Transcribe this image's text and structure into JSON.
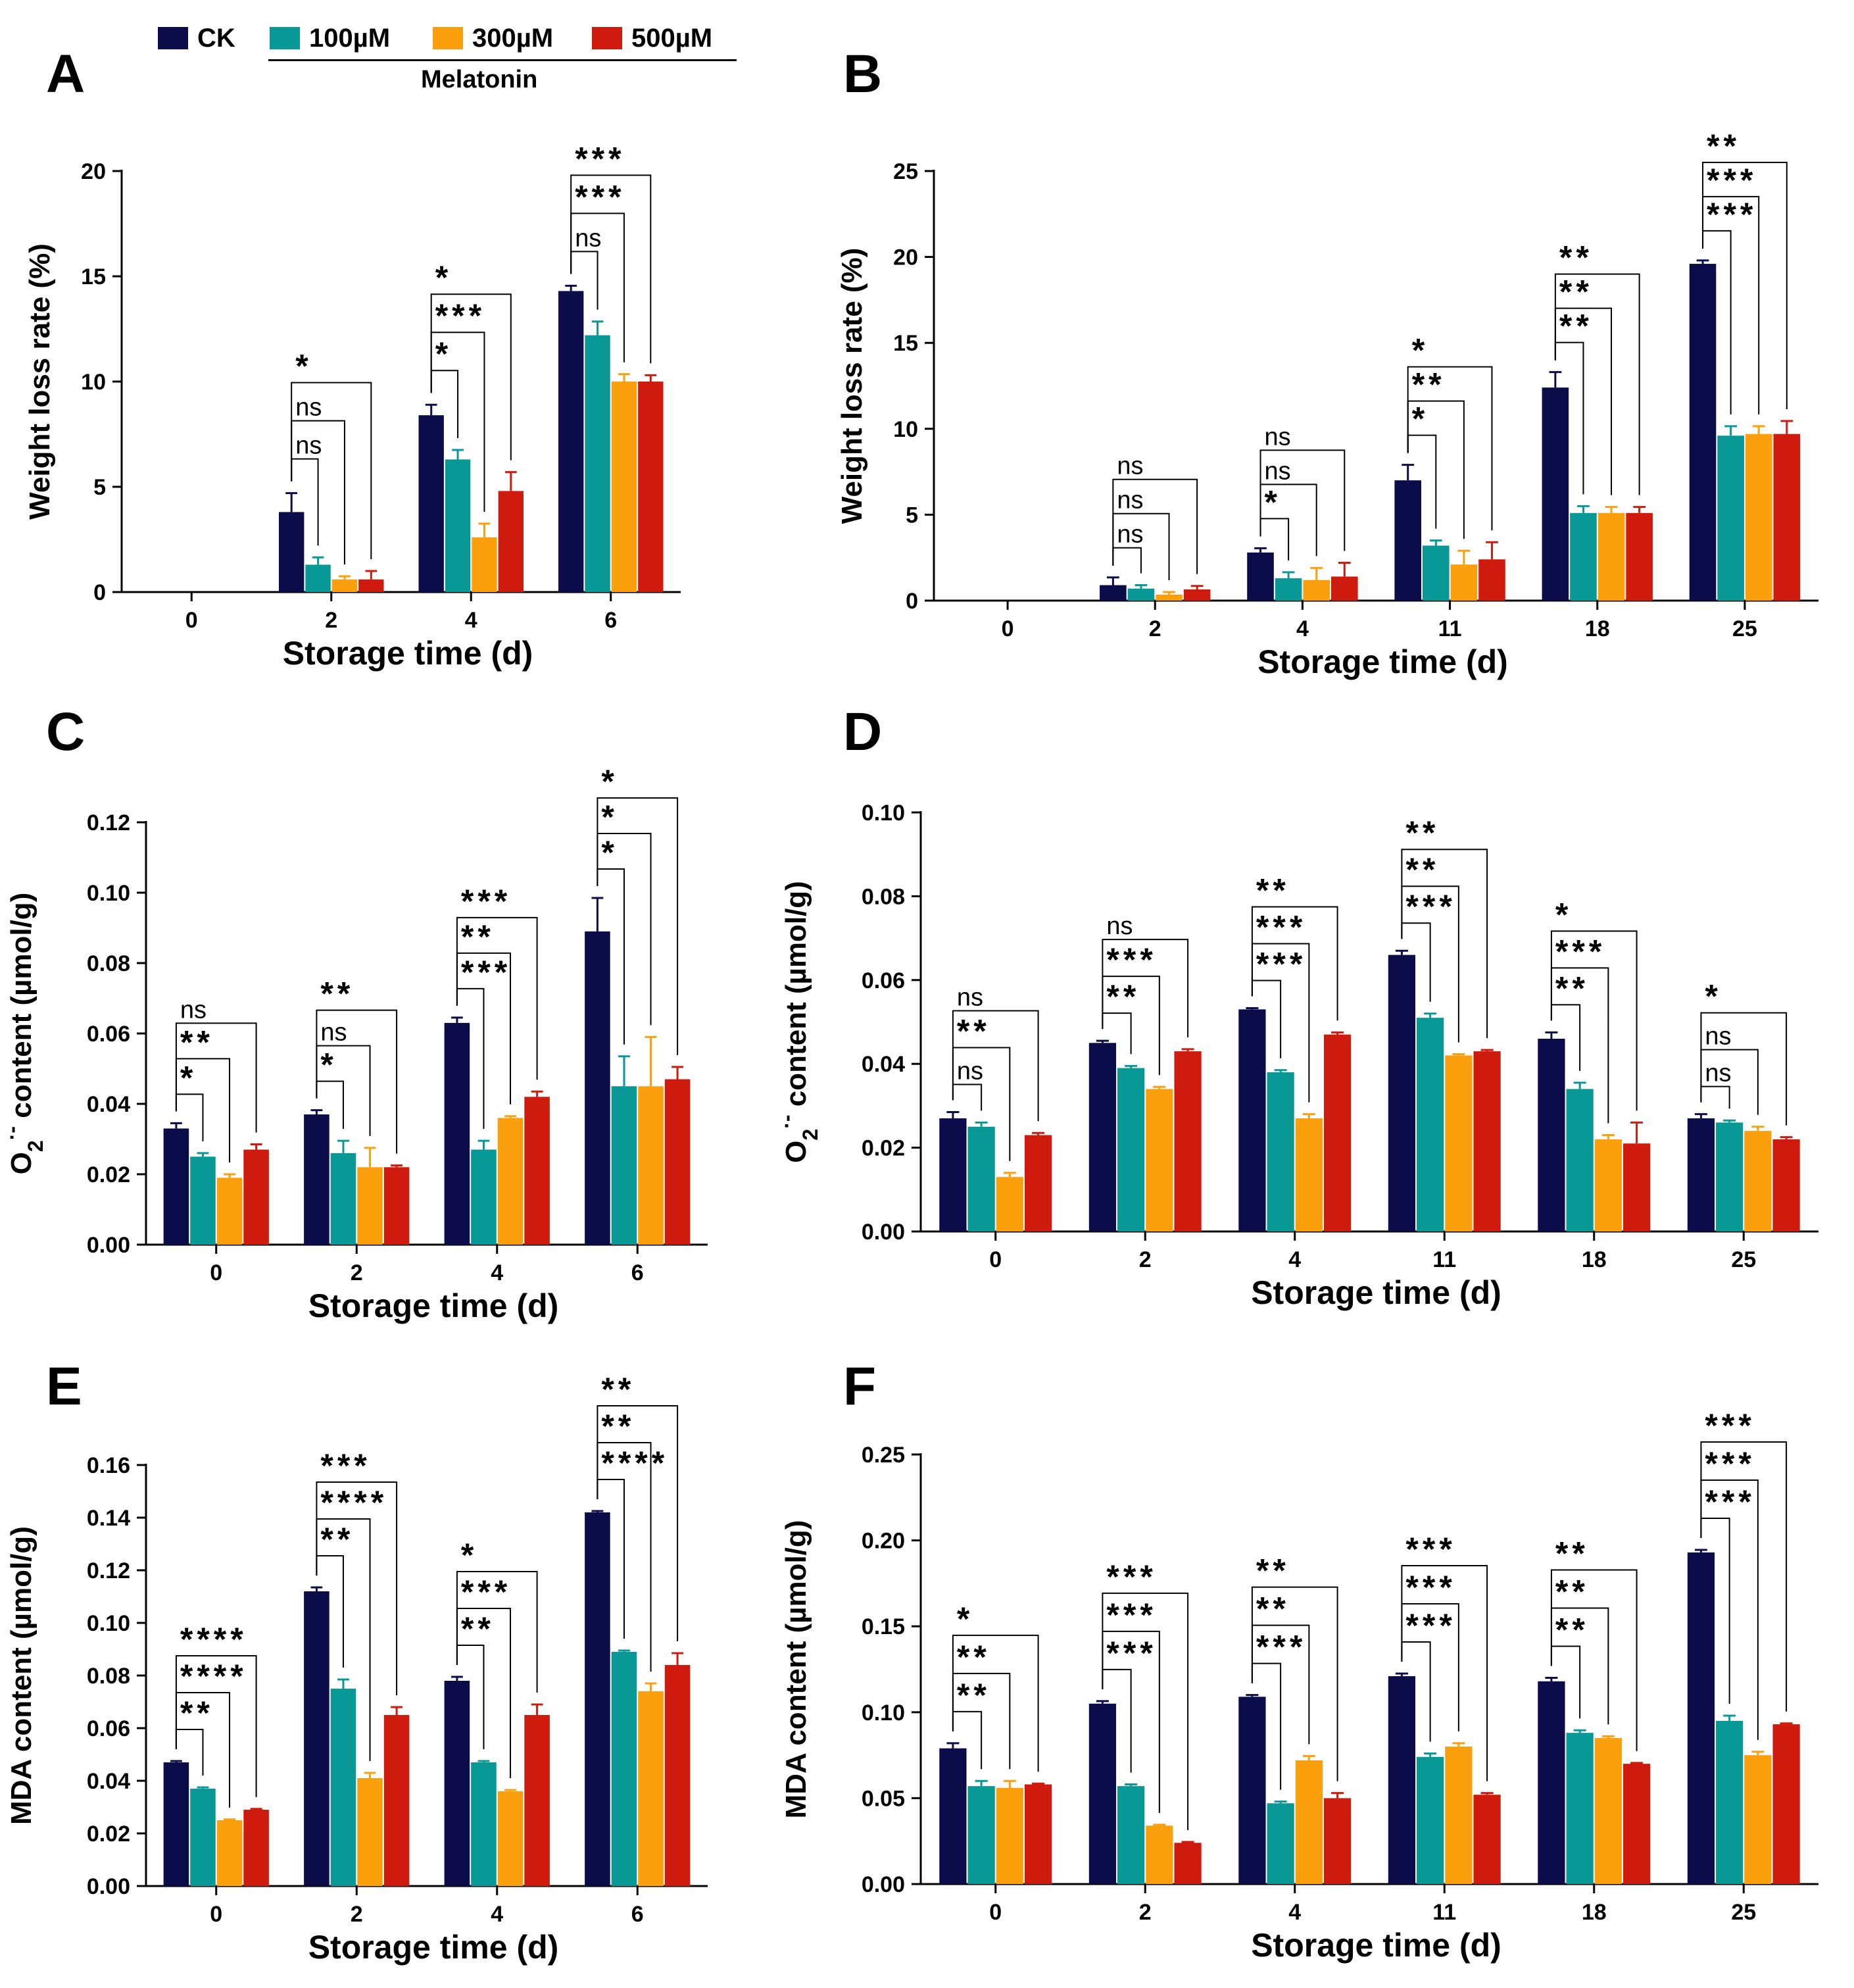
{
  "colors": {
    "CK": "#0c0c4a",
    "100uM": "#089896",
    "300uM": "#fb9f0d",
    "500uM": "#cf1b0d"
  },
  "legend": {
    "items": [
      {
        "key": "CK",
        "label": "CK"
      },
      {
        "key": "100uM",
        "label": "100µM"
      },
      {
        "key": "300uM",
        "label": "300µM"
      },
      {
        "key": "500uM",
        "label": "500µM"
      }
    ],
    "group_label": "Melatonin"
  },
  "chart_data": [
    {
      "panel": "A",
      "type": "bar",
      "xlabel": "Storage time (d)",
      "ylabel": "Weight loss rate (%)",
      "ylim": [
        0,
        20
      ],
      "yticks": [
        "0",
        "5",
        "10",
        "15",
        "20"
      ],
      "categories": [
        "0",
        "2",
        "4",
        "6"
      ],
      "series": [
        {
          "name": "CK",
          "values": [
            0,
            3.8,
            8.4,
            14.3
          ],
          "errors": [
            0,
            0.9,
            0.5,
            0.25
          ]
        },
        {
          "name": "100µM",
          "values": [
            0,
            1.3,
            6.3,
            12.2
          ],
          "errors": [
            0,
            0.35,
            0.45,
            0.65
          ]
        },
        {
          "name": "300µM",
          "values": [
            0,
            0.6,
            2.6,
            10.0
          ],
          "errors": [
            0,
            0.15,
            0.65,
            0.35
          ]
        },
        {
          "name": "500µM",
          "values": [
            0,
            0.6,
            4.8,
            10.0
          ],
          "errors": [
            0,
            0.4,
            0.9,
            0.3
          ]
        }
      ],
      "brackets": [
        {
          "cat": 1,
          "to": 1,
          "label": "ns"
        },
        {
          "cat": 1,
          "to": 2,
          "label": "ns"
        },
        {
          "cat": 1,
          "to": 3,
          "label": "*"
        },
        {
          "cat": 2,
          "to": 1,
          "label": "*"
        },
        {
          "cat": 2,
          "to": 2,
          "label": "***"
        },
        {
          "cat": 2,
          "to": 3,
          "label": "*"
        },
        {
          "cat": 3,
          "to": 1,
          "label": "ns"
        },
        {
          "cat": 3,
          "to": 2,
          "label": "***"
        },
        {
          "cat": 3,
          "to": 3,
          "label": "***"
        }
      ]
    },
    {
      "panel": "B",
      "type": "bar",
      "xlabel": "Storage time (d)",
      "ylabel": "Weight loss rate (%)",
      "ylim": [
        0,
        25
      ],
      "yticks": [
        "0",
        "5",
        "10",
        "15",
        "20",
        "25"
      ],
      "categories": [
        "0",
        "2",
        "4",
        "11",
        "18",
        "25"
      ],
      "series": [
        {
          "name": "CK",
          "values": [
            0,
            0.9,
            2.8,
            7.0,
            12.4,
            19.6
          ],
          "errors": [
            0,
            0.45,
            0.25,
            0.9,
            0.9,
            0.2
          ]
        },
        {
          "name": "100µM",
          "values": [
            0,
            0.7,
            1.3,
            3.2,
            5.1,
            9.6
          ],
          "errors": [
            0,
            0.2,
            0.35,
            0.3,
            0.4,
            0.55
          ]
        },
        {
          "name": "300µM",
          "values": [
            0,
            0.35,
            1.2,
            2.1,
            5.1,
            9.7
          ],
          "errors": [
            0,
            0.15,
            0.7,
            0.8,
            0.35,
            0.45
          ]
        },
        {
          "name": "500µM",
          "values": [
            0,
            0.65,
            1.4,
            2.4,
            5.1,
            9.7
          ],
          "errors": [
            0,
            0.2,
            0.8,
            1.0,
            0.35,
            0.75
          ]
        }
      ],
      "brackets": [
        {
          "cat": 1,
          "to": 1,
          "label": "ns"
        },
        {
          "cat": 1,
          "to": 2,
          "label": "ns"
        },
        {
          "cat": 1,
          "to": 3,
          "label": "ns"
        },
        {
          "cat": 2,
          "to": 1,
          "label": "*"
        },
        {
          "cat": 2,
          "to": 2,
          "label": "ns"
        },
        {
          "cat": 2,
          "to": 3,
          "label": "ns"
        },
        {
          "cat": 3,
          "to": 1,
          "label": "*"
        },
        {
          "cat": 3,
          "to": 2,
          "label": "**"
        },
        {
          "cat": 3,
          "to": 3,
          "label": "*"
        },
        {
          "cat": 4,
          "to": 1,
          "label": "**"
        },
        {
          "cat": 4,
          "to": 2,
          "label": "**"
        },
        {
          "cat": 4,
          "to": 3,
          "label": "**"
        },
        {
          "cat": 5,
          "to": 1,
          "label": "***"
        },
        {
          "cat": 5,
          "to": 2,
          "label": "***"
        },
        {
          "cat": 5,
          "to": 3,
          "label": "**"
        }
      ]
    },
    {
      "panel": "C",
      "type": "bar",
      "xlabel": "Storage time (d)",
      "ylabel": "O2·- content (µmol/g)",
      "ylabel_parts": {
        "base": "O",
        "sub": "2",
        "sup": "·-",
        "rest": " content (µmol/g)"
      },
      "ylim": [
        0,
        0.12
      ],
      "yticks": [
        "0.00",
        "0.02",
        "0.04",
        "0.06",
        "0.08",
        "0.10",
        "0.12"
      ],
      "categories": [
        "0",
        "2",
        "4",
        "6"
      ],
      "series": [
        {
          "name": "CK",
          "values": [
            0.033,
            0.037,
            0.063,
            0.089
          ],
          "errors": [
            0.0015,
            0.0012,
            0.0015,
            0.0095
          ]
        },
        {
          "name": "100µM",
          "values": [
            0.025,
            0.026,
            0.027,
            0.045
          ],
          "errors": [
            0.001,
            0.0035,
            0.0025,
            0.0085
          ]
        },
        {
          "name": "300µM",
          "values": [
            0.019,
            0.022,
            0.036,
            0.045
          ],
          "errors": [
            0.001,
            0.0055,
            0.0005,
            0.014
          ]
        },
        {
          "name": "500µM",
          "values": [
            0.027,
            0.022,
            0.042,
            0.047
          ],
          "errors": [
            0.0015,
            0.0005,
            0.0015,
            0.0035
          ]
        }
      ],
      "brackets": [
        {
          "cat": 0,
          "to": 1,
          "label": "*"
        },
        {
          "cat": 0,
          "to": 2,
          "label": "**"
        },
        {
          "cat": 0,
          "to": 3,
          "label": "ns"
        },
        {
          "cat": 1,
          "to": 1,
          "label": "*"
        },
        {
          "cat": 1,
          "to": 2,
          "label": "ns"
        },
        {
          "cat": 1,
          "to": 3,
          "label": "**"
        },
        {
          "cat": 2,
          "to": 1,
          "label": "***"
        },
        {
          "cat": 2,
          "to": 2,
          "label": "**"
        },
        {
          "cat": 2,
          "to": 3,
          "label": "***"
        },
        {
          "cat": 3,
          "to": 1,
          "label": "*"
        },
        {
          "cat": 3,
          "to": 2,
          "label": "*"
        },
        {
          "cat": 3,
          "to": 3,
          "label": "*"
        }
      ]
    },
    {
      "panel": "D",
      "type": "bar",
      "xlabel": "Storage time (d)",
      "ylabel": "O2·- content (µmol/g)",
      "ylabel_parts": {
        "base": "O",
        "sub": "2",
        "sup": "·-",
        "rest": " content (µmol/g)"
      },
      "ylim": [
        0,
        0.1
      ],
      "yticks": [
        "0.00",
        "0.02",
        "0.04",
        "0.06",
        "0.08",
        "0.10"
      ],
      "categories": [
        "0",
        "2",
        "4",
        "11",
        "18",
        "25"
      ],
      "series": [
        {
          "name": "CK",
          "values": [
            0.027,
            0.045,
            0.053,
            0.066,
            0.046,
            0.027
          ],
          "errors": [
            0.0015,
            0.0005,
            0.0003,
            0.001,
            0.0015,
            0.001
          ]
        },
        {
          "name": "100µM",
          "values": [
            0.025,
            0.039,
            0.038,
            0.051,
            0.034,
            0.026
          ],
          "errors": [
            0.001,
            0.0005,
            0.0005,
            0.001,
            0.0015,
            0.0005
          ]
        },
        {
          "name": "300µM",
          "values": [
            0.013,
            0.034,
            0.027,
            0.042,
            0.022,
            0.024
          ],
          "errors": [
            0.001,
            0.0005,
            0.001,
            0.0003,
            0.001,
            0.001
          ]
        },
        {
          "name": "500µM",
          "values": [
            0.023,
            0.043,
            0.047,
            0.043,
            0.021,
            0.022
          ],
          "errors": [
            0.0005,
            0.0005,
            0.0005,
            0.0003,
            0.005,
            0.0005
          ]
        }
      ],
      "brackets": [
        {
          "cat": 0,
          "to": 1,
          "label": "ns"
        },
        {
          "cat": 0,
          "to": 2,
          "label": "**"
        },
        {
          "cat": 0,
          "to": 3,
          "label": "ns"
        },
        {
          "cat": 1,
          "to": 1,
          "label": "**"
        },
        {
          "cat": 1,
          "to": 2,
          "label": "***"
        },
        {
          "cat": 1,
          "to": 3,
          "label": "ns"
        },
        {
          "cat": 2,
          "to": 1,
          "label": "***"
        },
        {
          "cat": 2,
          "to": 2,
          "label": "***"
        },
        {
          "cat": 2,
          "to": 3,
          "label": "**"
        },
        {
          "cat": 3,
          "to": 1,
          "label": "***"
        },
        {
          "cat": 3,
          "to": 2,
          "label": "**"
        },
        {
          "cat": 3,
          "to": 3,
          "label": "**"
        },
        {
          "cat": 4,
          "to": 1,
          "label": "**"
        },
        {
          "cat": 4,
          "to": 2,
          "label": "***"
        },
        {
          "cat": 4,
          "to": 3,
          "label": "*"
        },
        {
          "cat": 5,
          "to": 1,
          "label": "ns"
        },
        {
          "cat": 5,
          "to": 2,
          "label": "ns"
        },
        {
          "cat": 5,
          "to": 3,
          "label": "*"
        }
      ]
    },
    {
      "panel": "E",
      "type": "bar",
      "xlabel": "Storage time (d)",
      "ylabel": "MDA content (µmol/g)",
      "ylim": [
        0,
        0.16
      ],
      "yticks": [
        "0.00",
        "0.02",
        "0.04",
        "0.06",
        "0.08",
        "0.10",
        "0.12",
        "0.14",
        "0.16"
      ],
      "categories": [
        "0",
        "2",
        "4",
        "6"
      ],
      "series": [
        {
          "name": "CK",
          "values": [
            0.047,
            0.112,
            0.078,
            0.142
          ],
          "errors": [
            0.0005,
            0.0015,
            0.0015,
            0.0005
          ]
        },
        {
          "name": "100µM",
          "values": [
            0.037,
            0.075,
            0.047,
            0.089
          ],
          "errors": [
            0.0005,
            0.0035,
            0.0005,
            0.0005
          ]
        },
        {
          "name": "300µM",
          "values": [
            0.025,
            0.041,
            0.036,
            0.074
          ],
          "errors": [
            0.0003,
            0.002,
            0.0005,
            0.003
          ]
        },
        {
          "name": "500µM",
          "values": [
            0.029,
            0.065,
            0.065,
            0.084
          ],
          "errors": [
            0.0003,
            0.003,
            0.004,
            0.0045
          ]
        }
      ],
      "brackets": [
        {
          "cat": 0,
          "to": 1,
          "label": "**"
        },
        {
          "cat": 0,
          "to": 2,
          "label": "****"
        },
        {
          "cat": 0,
          "to": 3,
          "label": "****"
        },
        {
          "cat": 1,
          "to": 1,
          "label": "**"
        },
        {
          "cat": 1,
          "to": 2,
          "label": "****"
        },
        {
          "cat": 1,
          "to": 3,
          "label": "***"
        },
        {
          "cat": 2,
          "to": 1,
          "label": "**"
        },
        {
          "cat": 2,
          "to": 2,
          "label": "***"
        },
        {
          "cat": 2,
          "to": 3,
          "label": "*"
        },
        {
          "cat": 3,
          "to": 1,
          "label": "****"
        },
        {
          "cat": 3,
          "to": 2,
          "label": "**"
        },
        {
          "cat": 3,
          "to": 3,
          "label": "**"
        }
      ]
    },
    {
      "panel": "F",
      "type": "bar",
      "xlabel": "Storage time (d)",
      "ylabel": "MDA content (µmol/g)",
      "ylim": [
        0,
        0.25
      ],
      "yticks": [
        "0.00",
        "0.05",
        "0.10",
        "0.15",
        "0.20",
        "0.25"
      ],
      "categories": [
        "0",
        "2",
        "4",
        "11",
        "18",
        "25"
      ],
      "series": [
        {
          "name": "CK",
          "values": [
            0.079,
            0.105,
            0.109,
            0.121,
            0.118,
            0.193
          ],
          "errors": [
            0.003,
            0.0015,
            0.001,
            0.0015,
            0.002,
            0.0015
          ]
        },
        {
          "name": "100µM",
          "values": [
            0.057,
            0.057,
            0.047,
            0.074,
            0.088,
            0.095
          ],
          "errors": [
            0.003,
            0.001,
            0.001,
            0.002,
            0.0015,
            0.003
          ]
        },
        {
          "name": "300µM",
          "values": [
            0.056,
            0.034,
            0.072,
            0.08,
            0.085,
            0.075
          ],
          "errors": [
            0.004,
            0.0005,
            0.0025,
            0.002,
            0.001,
            0.002
          ]
        },
        {
          "name": "500µM",
          "values": [
            0.058,
            0.024,
            0.05,
            0.052,
            0.07,
            0.093
          ],
          "errors": [
            0.0005,
            0.0005,
            0.003,
            0.001,
            0.0005,
            0.0005
          ]
        }
      ],
      "brackets": [
        {
          "cat": 0,
          "to": 1,
          "label": "**"
        },
        {
          "cat": 0,
          "to": 2,
          "label": "**"
        },
        {
          "cat": 0,
          "to": 3,
          "label": "*"
        },
        {
          "cat": 1,
          "to": 1,
          "label": "***"
        },
        {
          "cat": 1,
          "to": 2,
          "label": "***"
        },
        {
          "cat": 1,
          "to": 3,
          "label": "***"
        },
        {
          "cat": 2,
          "to": 1,
          "label": "***"
        },
        {
          "cat": 2,
          "to": 2,
          "label": "**"
        },
        {
          "cat": 2,
          "to": 3,
          "label": "**"
        },
        {
          "cat": 3,
          "to": 1,
          "label": "***"
        },
        {
          "cat": 3,
          "to": 2,
          "label": "***"
        },
        {
          "cat": 3,
          "to": 3,
          "label": "***"
        },
        {
          "cat": 4,
          "to": 1,
          "label": "**"
        },
        {
          "cat": 4,
          "to": 2,
          "label": "**"
        },
        {
          "cat": 4,
          "to": 3,
          "label": "**"
        },
        {
          "cat": 5,
          "to": 1,
          "label": "***"
        },
        {
          "cat": 5,
          "to": 2,
          "label": "***"
        },
        {
          "cat": 5,
          "to": 3,
          "label": "***"
        }
      ]
    }
  ]
}
